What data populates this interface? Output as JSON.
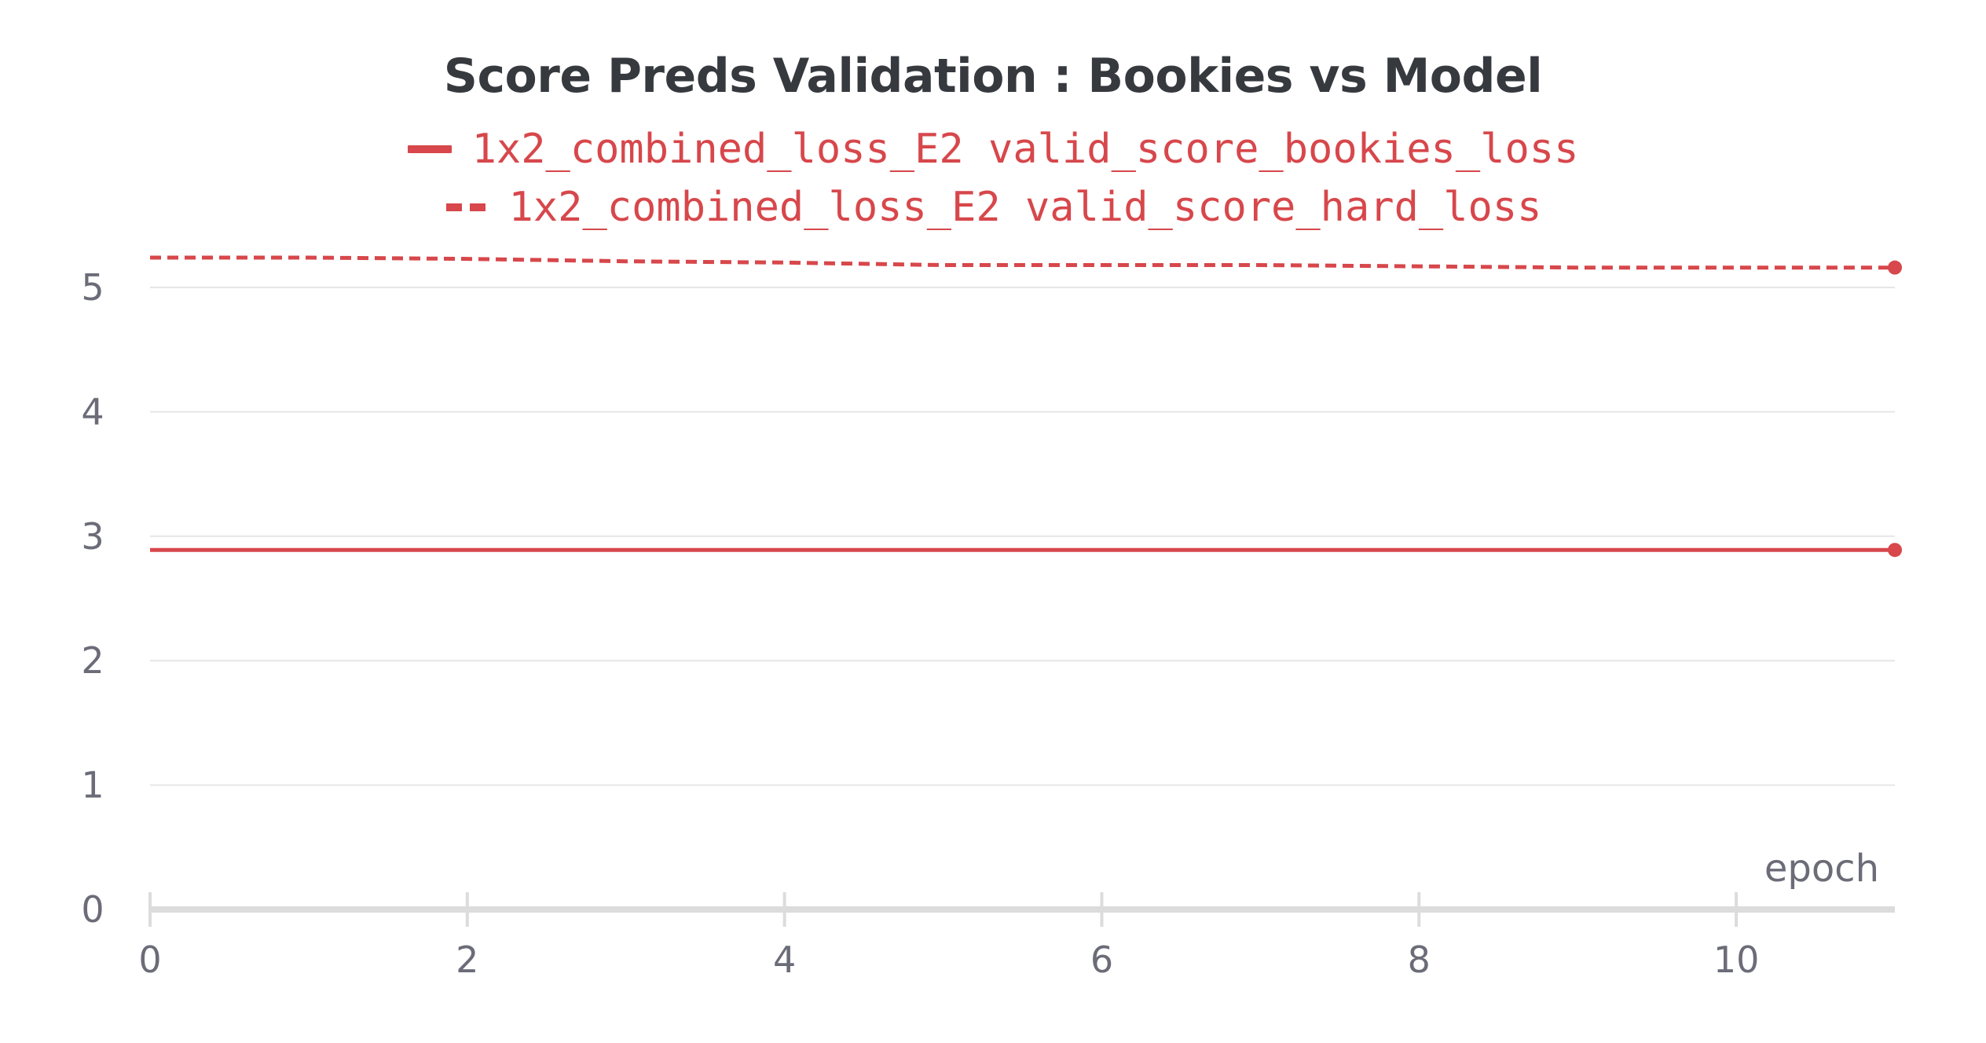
{
  "chart_data": {
    "type": "line",
    "title": "Score Preds Validation : Bookies vs Model",
    "xlabel": "epoch",
    "ylabel": "",
    "xlim": [
      0,
      11
    ],
    "ylim": [
      0,
      5.3
    ],
    "xticks": [
      0,
      2,
      4,
      6,
      8,
      10
    ],
    "yticks": [
      0,
      1,
      2,
      3,
      4,
      5
    ],
    "grid": "horizontal",
    "legend_position": "top-center",
    "series": [
      {
        "name": "1x2_combined_loss_E2 valid_score_bookies_loss",
        "style": "solid",
        "color": "#d7474b",
        "x": [
          0,
          1,
          2,
          3,
          4,
          5,
          6,
          7,
          8,
          9,
          10,
          11
        ],
        "values": [
          2.89,
          2.89,
          2.89,
          2.89,
          2.89,
          2.89,
          2.89,
          2.89,
          2.89,
          2.89,
          2.89,
          2.89
        ]
      },
      {
        "name": "1x2_combined_loss_E2 valid_score_hard_loss",
        "style": "dashed",
        "color": "#d7474b",
        "x": [
          0,
          1,
          2,
          3,
          4,
          5,
          6,
          7,
          8,
          9,
          10,
          11
        ],
        "values": [
          5.24,
          5.24,
          5.23,
          5.21,
          5.2,
          5.18,
          5.18,
          5.18,
          5.17,
          5.16,
          5.16,
          5.16
        ]
      }
    ]
  },
  "colors": {
    "series": "#d7474b",
    "grid": "#e6e6e6",
    "axis": "#dcdcdc",
    "tick_text": "#6b6c78",
    "title_text": "#363a3f"
  }
}
